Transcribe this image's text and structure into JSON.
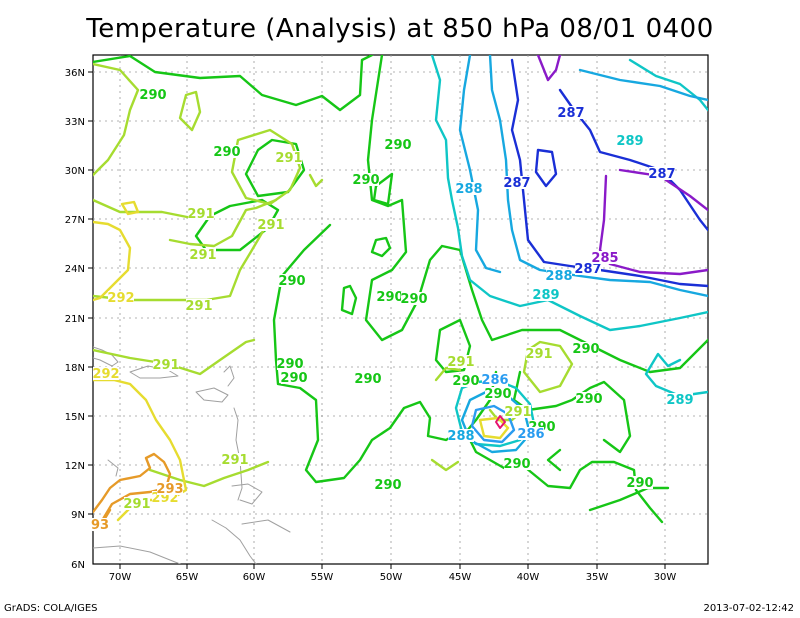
{
  "title": "Temperature (Analysis) at 850 hPa 08/01 0400",
  "footer": {
    "left": "GrADS: COLA/IGES",
    "right": "2013-07-02-12:42"
  },
  "axes": {
    "y_ticks": [
      "36N",
      "33N",
      "30N",
      "27N",
      "24N",
      "21N",
      "18N",
      "15N",
      "12N",
      "9N",
      "6N"
    ],
    "x_ticks": [
      "70W",
      "65W",
      "60W",
      "55W",
      "50W",
      "45W",
      "40W",
      "35W",
      "30W"
    ]
  },
  "colors": {
    "c286": "#2a9cf0",
    "c287": "#1a2fd6",
    "c288": "#17a8e0",
    "c289": "#0fc6c6",
    "c290": "#16c616",
    "c291": "#a6dc30",
    "c292": "#e6dc30",
    "c293": "#e69a28",
    "c285": "#8a1ac8",
    "c_hot": "#e6146e"
  },
  "contour_labels": [
    {
      "text": "290",
      "color": "c290"
    },
    {
      "text": "290",
      "color": "c290"
    },
    {
      "text": "290",
      "color": "c290"
    },
    {
      "text": "290",
      "color": "c290"
    },
    {
      "text": "290",
      "color": "c290"
    },
    {
      "text": "290",
      "color": "c290"
    },
    {
      "text": "290",
      "color": "c290"
    },
    {
      "text": "290",
      "color": "c290"
    },
    {
      "text": "290",
      "color": "c290"
    },
    {
      "text": "290",
      "color": "c290"
    },
    {
      "text": "290",
      "color": "c290"
    },
    {
      "text": "290",
      "color": "c290"
    },
    {
      "text": "290",
      "color": "c290"
    },
    {
      "text": "290",
      "color": "c290"
    },
    {
      "text": "290",
      "color": "c290"
    },
    {
      "text": "290",
      "color": "c290"
    },
    {
      "text": "290",
      "color": "c290"
    },
    {
      "text": "290",
      "color": "c290"
    },
    {
      "text": "291",
      "color": "c291"
    },
    {
      "text": "291",
      "color": "c291"
    },
    {
      "text": "291",
      "color": "c291"
    },
    {
      "text": "291",
      "color": "c291"
    },
    {
      "text": "291",
      "color": "c291"
    },
    {
      "text": "291",
      "color": "c291"
    },
    {
      "text": "291",
      "color": "c291"
    },
    {
      "text": "291",
      "color": "c291"
    },
    {
      "text": "291",
      "color": "c291"
    },
    {
      "text": "291",
      "color": "c291"
    },
    {
      "text": "291",
      "color": "c291"
    },
    {
      "text": "292",
      "color": "c292"
    },
    {
      "text": "292",
      "color": "c292"
    },
    {
      "text": "292",
      "color": "c292"
    },
    {
      "text": "293",
      "color": "c293"
    },
    {
      "text": "93",
      "color": "c293"
    },
    {
      "text": "288",
      "color": "c288"
    },
    {
      "text": "288",
      "color": "c288"
    },
    {
      "text": "288",
      "color": "c288"
    },
    {
      "text": "287",
      "color": "c287"
    },
    {
      "text": "287",
      "color": "c287"
    },
    {
      "text": "287",
      "color": "c287"
    },
    {
      "text": "287",
      "color": "c287"
    },
    {
      "text": "289",
      "color": "c289"
    },
    {
      "text": "289",
      "color": "c289"
    },
    {
      "text": "289",
      "color": "c289"
    },
    {
      "text": "286",
      "color": "c286"
    },
    {
      "text": "286",
      "color": "c286"
    },
    {
      "text": "285",
      "color": "c285"
    }
  ]
}
